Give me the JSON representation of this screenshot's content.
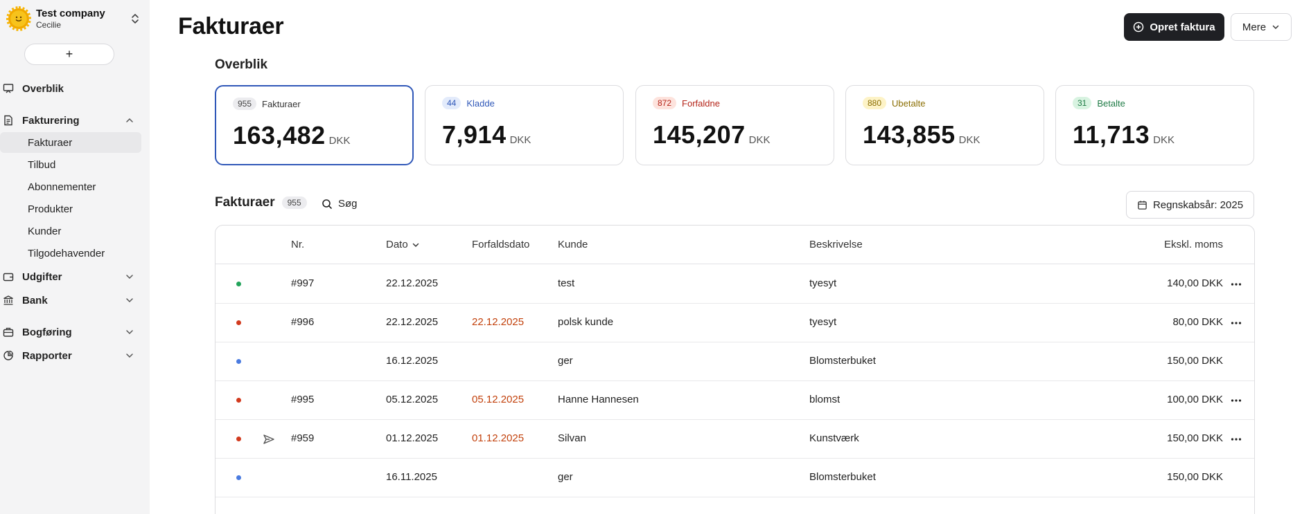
{
  "company": {
    "name": "Test company",
    "user": "Cecilie"
  },
  "sidebar": {
    "add_label": "+",
    "overview_label": "Overblik",
    "groups": [
      {
        "label": "Fakturering",
        "icon": "invoice-icon",
        "expanded": true
      },
      {
        "label": "Udgifter",
        "icon": "wallet-icon",
        "expanded": false
      },
      {
        "label": "Bank",
        "icon": "bank-icon",
        "expanded": false
      },
      {
        "label": "Bogføring",
        "icon": "briefcase-icon",
        "expanded": false
      },
      {
        "label": "Rapporter",
        "icon": "pie-chart-icon",
        "expanded": false
      }
    ],
    "sub_items": [
      {
        "label": "Fakturaer",
        "active": true
      },
      {
        "label": "Tilbud",
        "active": false
      },
      {
        "label": "Abonnementer",
        "active": false
      },
      {
        "label": "Produkter",
        "active": false
      },
      {
        "label": "Kunder",
        "active": false
      },
      {
        "label": "Tilgodehavender",
        "active": false
      }
    ]
  },
  "header": {
    "title": "Fakturaer",
    "create_label": "Opret faktura",
    "more_label": "Mere"
  },
  "overview": {
    "title": "Overblik",
    "cards": [
      {
        "count": "955",
        "label": "Fakturaer",
        "value": "163,482",
        "unit": "DKK",
        "pill_bg": "#ececef",
        "pill_color": "#444444",
        "label_color": "#333333"
      },
      {
        "count": "44",
        "label": "Kladde",
        "value": "7,914",
        "unit": "DKK",
        "pill_bg": "#e3ebfb",
        "pill_color": "#2f57b8",
        "label_color": "#2f57b8"
      },
      {
        "count": "872",
        "label": "Forfaldne",
        "value": "145,207",
        "unit": "DKK",
        "pill_bg": "#fde3dd",
        "pill_color": "#b42318",
        "label_color": "#b42318"
      },
      {
        "count": "880",
        "label": "Ubetalte",
        "value": "143,855",
        "unit": "DKK",
        "pill_bg": "#fdf3c7",
        "pill_color": "#8a6d00",
        "label_color": "#8a6d00"
      },
      {
        "count": "31",
        "label": "Betalte",
        "value": "11,713",
        "unit": "DKK",
        "pill_bg": "#d8f3e1",
        "pill_color": "#1d7a44",
        "label_color": "#1d7a44"
      }
    ]
  },
  "list": {
    "title": "Fakturaer",
    "count": "955",
    "search_label": "Søg",
    "fiscal_year_label": "Regnskabsår: 2025",
    "columns": {
      "nr": "Nr.",
      "date": "Dato",
      "due": "Forfaldsdato",
      "customer": "Kunde",
      "description": "Beskrivelse",
      "amount": "Ekskl. moms"
    },
    "rows": [
      {
        "status_color": "#22a35a",
        "sent": false,
        "nr": "#997",
        "date": "22.12.2025",
        "due": "",
        "customer": "test",
        "description": "tyesyt",
        "amount": "140,00 DKK",
        "menu": true
      },
      {
        "status_color": "#d23a1e",
        "sent": false,
        "nr": "#996",
        "date": "22.12.2025",
        "due": "22.12.2025",
        "customer": "polsk kunde",
        "description": "tyesyt",
        "amount": "80,00 DKK",
        "menu": true
      },
      {
        "status_color": "#4a7be0",
        "sent": false,
        "nr": "",
        "date": "16.12.2025",
        "due": "",
        "customer": "ger",
        "description": "Blomsterbuket",
        "amount": "150,00 DKK",
        "menu": false
      },
      {
        "status_color": "#d23a1e",
        "sent": false,
        "nr": "#995",
        "date": "05.12.2025",
        "due": "05.12.2025",
        "customer": "Hanne Hannesen",
        "description": "blomst",
        "amount": "100,00 DKK",
        "menu": true
      },
      {
        "status_color": "#d23a1e",
        "sent": true,
        "nr": "#959",
        "date": "01.12.2025",
        "due": "01.12.2025",
        "customer": "Silvan",
        "description": "Kunstværk",
        "amount": "150,00 DKK",
        "menu": true
      },
      {
        "status_color": "#4a7be0",
        "sent": false,
        "nr": "",
        "date": "16.11.2025",
        "due": "",
        "customer": "ger",
        "description": "Blomsterbuket",
        "amount": "150,00 DKK",
        "menu": false
      }
    ]
  }
}
